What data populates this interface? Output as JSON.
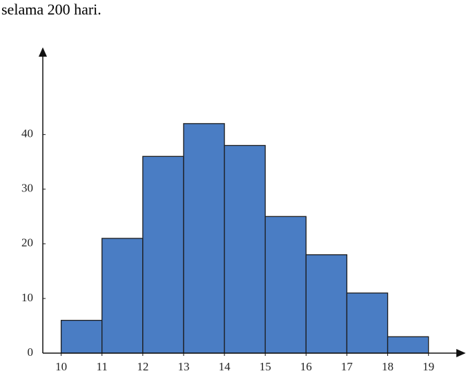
{
  "text": "selama 200 hari.",
  "chart_data": {
    "type": "histogram",
    "bins": [
      10,
      11,
      12,
      13,
      14,
      15,
      16,
      17,
      18,
      19
    ],
    "values": [
      6,
      21,
      36,
      42,
      38,
      25,
      18,
      11,
      3
    ],
    "color": "#4a7dc4",
    "xlim": [
      9.55,
      19.75
    ],
    "ylim": [
      0,
      54.5
    ],
    "xticks": [
      10,
      11,
      12,
      13,
      14,
      15,
      16,
      17,
      18,
      19
    ],
    "yticks": [
      0,
      10,
      20,
      30,
      40
    ]
  }
}
